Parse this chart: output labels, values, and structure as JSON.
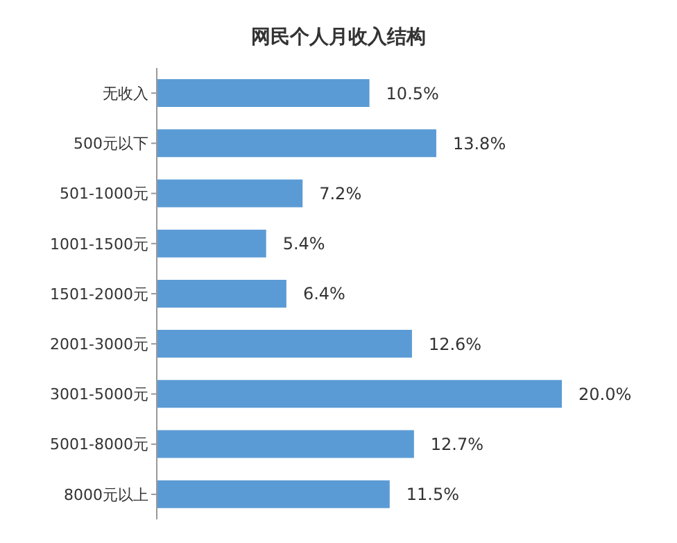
{
  "chart_data": {
    "type": "bar",
    "orientation": "horizontal",
    "title": "网民个人月收入结构",
    "categories": [
      "无收入",
      "500元以下",
      "501-1000元",
      "1001-1500元",
      "1501-2000元",
      "2001-3000元",
      "3001-5000元",
      "5001-8000元",
      "8000元以上"
    ],
    "values": [
      10.5,
      13.8,
      7.2,
      5.4,
      6.4,
      12.6,
      20.0,
      12.7,
      11.5
    ],
    "value_labels": [
      "10.5%",
      "13.8%",
      "7.2%",
      "5.4%",
      "6.4%",
      "12.6%",
      "20.0%",
      "12.7%",
      "11.5%"
    ],
    "color": "#5b9bd5"
  }
}
